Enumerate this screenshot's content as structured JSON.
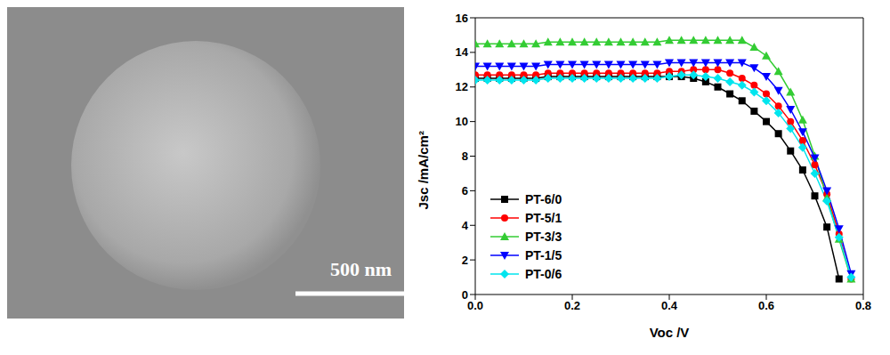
{
  "micrograph": {
    "scale_bar": "500 nm"
  },
  "chart_data": {
    "type": "line",
    "x_label": "Voc /V",
    "y_label": "Jsc /mA/cm²",
    "xlim": [
      0,
      0.8
    ],
    "xticks": [
      {
        "value": 0,
        "label": "0.0"
      },
      0.2,
      0.4,
      0.6,
      0.8
    ],
    "ylim": [
      0,
      16
    ],
    "yticks": [
      0,
      2,
      4,
      6,
      8,
      10,
      12,
      14,
      16
    ],
    "grid": false,
    "legend": "lower left",
    "x": [
      0,
      0.025,
      0.05,
      0.075,
      0.1,
      0.125,
      0.15,
      0.175,
      0.2,
      0.225,
      0.25,
      0.275,
      0.3,
      0.325,
      0.35,
      0.375,
      0.4,
      0.425,
      0.45,
      0.475,
      0.5,
      0.525,
      0.55,
      0.575,
      0.6,
      0.625,
      0.65,
      0.675,
      0.7,
      0.725,
      0.75,
      0.775
    ],
    "series": [
      {
        "name": "PT-6/0",
        "color": "#000000",
        "marker": "square",
        "values": [
          12.5,
          12.5,
          12.5,
          12.5,
          12.5,
          12.5,
          12.6,
          12.6,
          12.6,
          12.6,
          12.6,
          12.6,
          12.6,
          12.6,
          12.6,
          12.6,
          12.6,
          12.6,
          12.5,
          12.3,
          12.0,
          11.6,
          11.2,
          10.6,
          10.0,
          9.3,
          8.3,
          7.2,
          5.7,
          3.9,
          0.9,
          null
        ]
      },
      {
        "name": "PT-5/1",
        "color": "#ff0000",
        "marker": "circle",
        "values": [
          12.7,
          12.7,
          12.7,
          12.7,
          12.7,
          12.7,
          12.8,
          12.8,
          12.8,
          12.8,
          12.8,
          12.8,
          12.8,
          12.8,
          12.8,
          12.8,
          12.9,
          12.9,
          13.0,
          13.0,
          13.0,
          12.8,
          12.5,
          12.1,
          11.6,
          10.9,
          10.0,
          8.9,
          7.5,
          5.8,
          3.5,
          0.9
        ]
      },
      {
        "name": "PT-3/3",
        "color": "#33cc33",
        "marker": "triangle",
        "values": [
          14.5,
          14.5,
          14.5,
          14.5,
          14.5,
          14.5,
          14.6,
          14.6,
          14.6,
          14.6,
          14.6,
          14.6,
          14.6,
          14.6,
          14.6,
          14.6,
          14.7,
          14.7,
          14.7,
          14.7,
          14.7,
          14.7,
          14.7,
          14.3,
          13.8,
          12.9,
          11.7,
          10.1,
          8.0,
          5.6,
          3.2,
          0.9
        ]
      },
      {
        "name": "PT-1/5",
        "color": "#0000ff",
        "marker": "triangle-down",
        "values": [
          13.2,
          13.2,
          13.2,
          13.2,
          13.2,
          13.2,
          13.3,
          13.3,
          13.3,
          13.3,
          13.3,
          13.3,
          13.3,
          13.3,
          13.3,
          13.3,
          13.4,
          13.4,
          13.4,
          13.4,
          13.4,
          13.4,
          13.4,
          13.1,
          12.6,
          11.8,
          10.7,
          9.4,
          7.9,
          6.0,
          3.8,
          1.2
        ]
      },
      {
        "name": "PT-0/6",
        "color": "#00e5ee",
        "marker": "diamond",
        "values": [
          12.4,
          12.4,
          12.4,
          12.4,
          12.4,
          12.4,
          12.5,
          12.5,
          12.5,
          12.5,
          12.5,
          12.5,
          12.5,
          12.5,
          12.5,
          12.5,
          12.6,
          12.7,
          12.7,
          12.6,
          12.5,
          12.3,
          12.1,
          11.7,
          11.2,
          10.5,
          9.6,
          8.5,
          7.0,
          5.4,
          3.3,
          1.0
        ]
      }
    ]
  }
}
